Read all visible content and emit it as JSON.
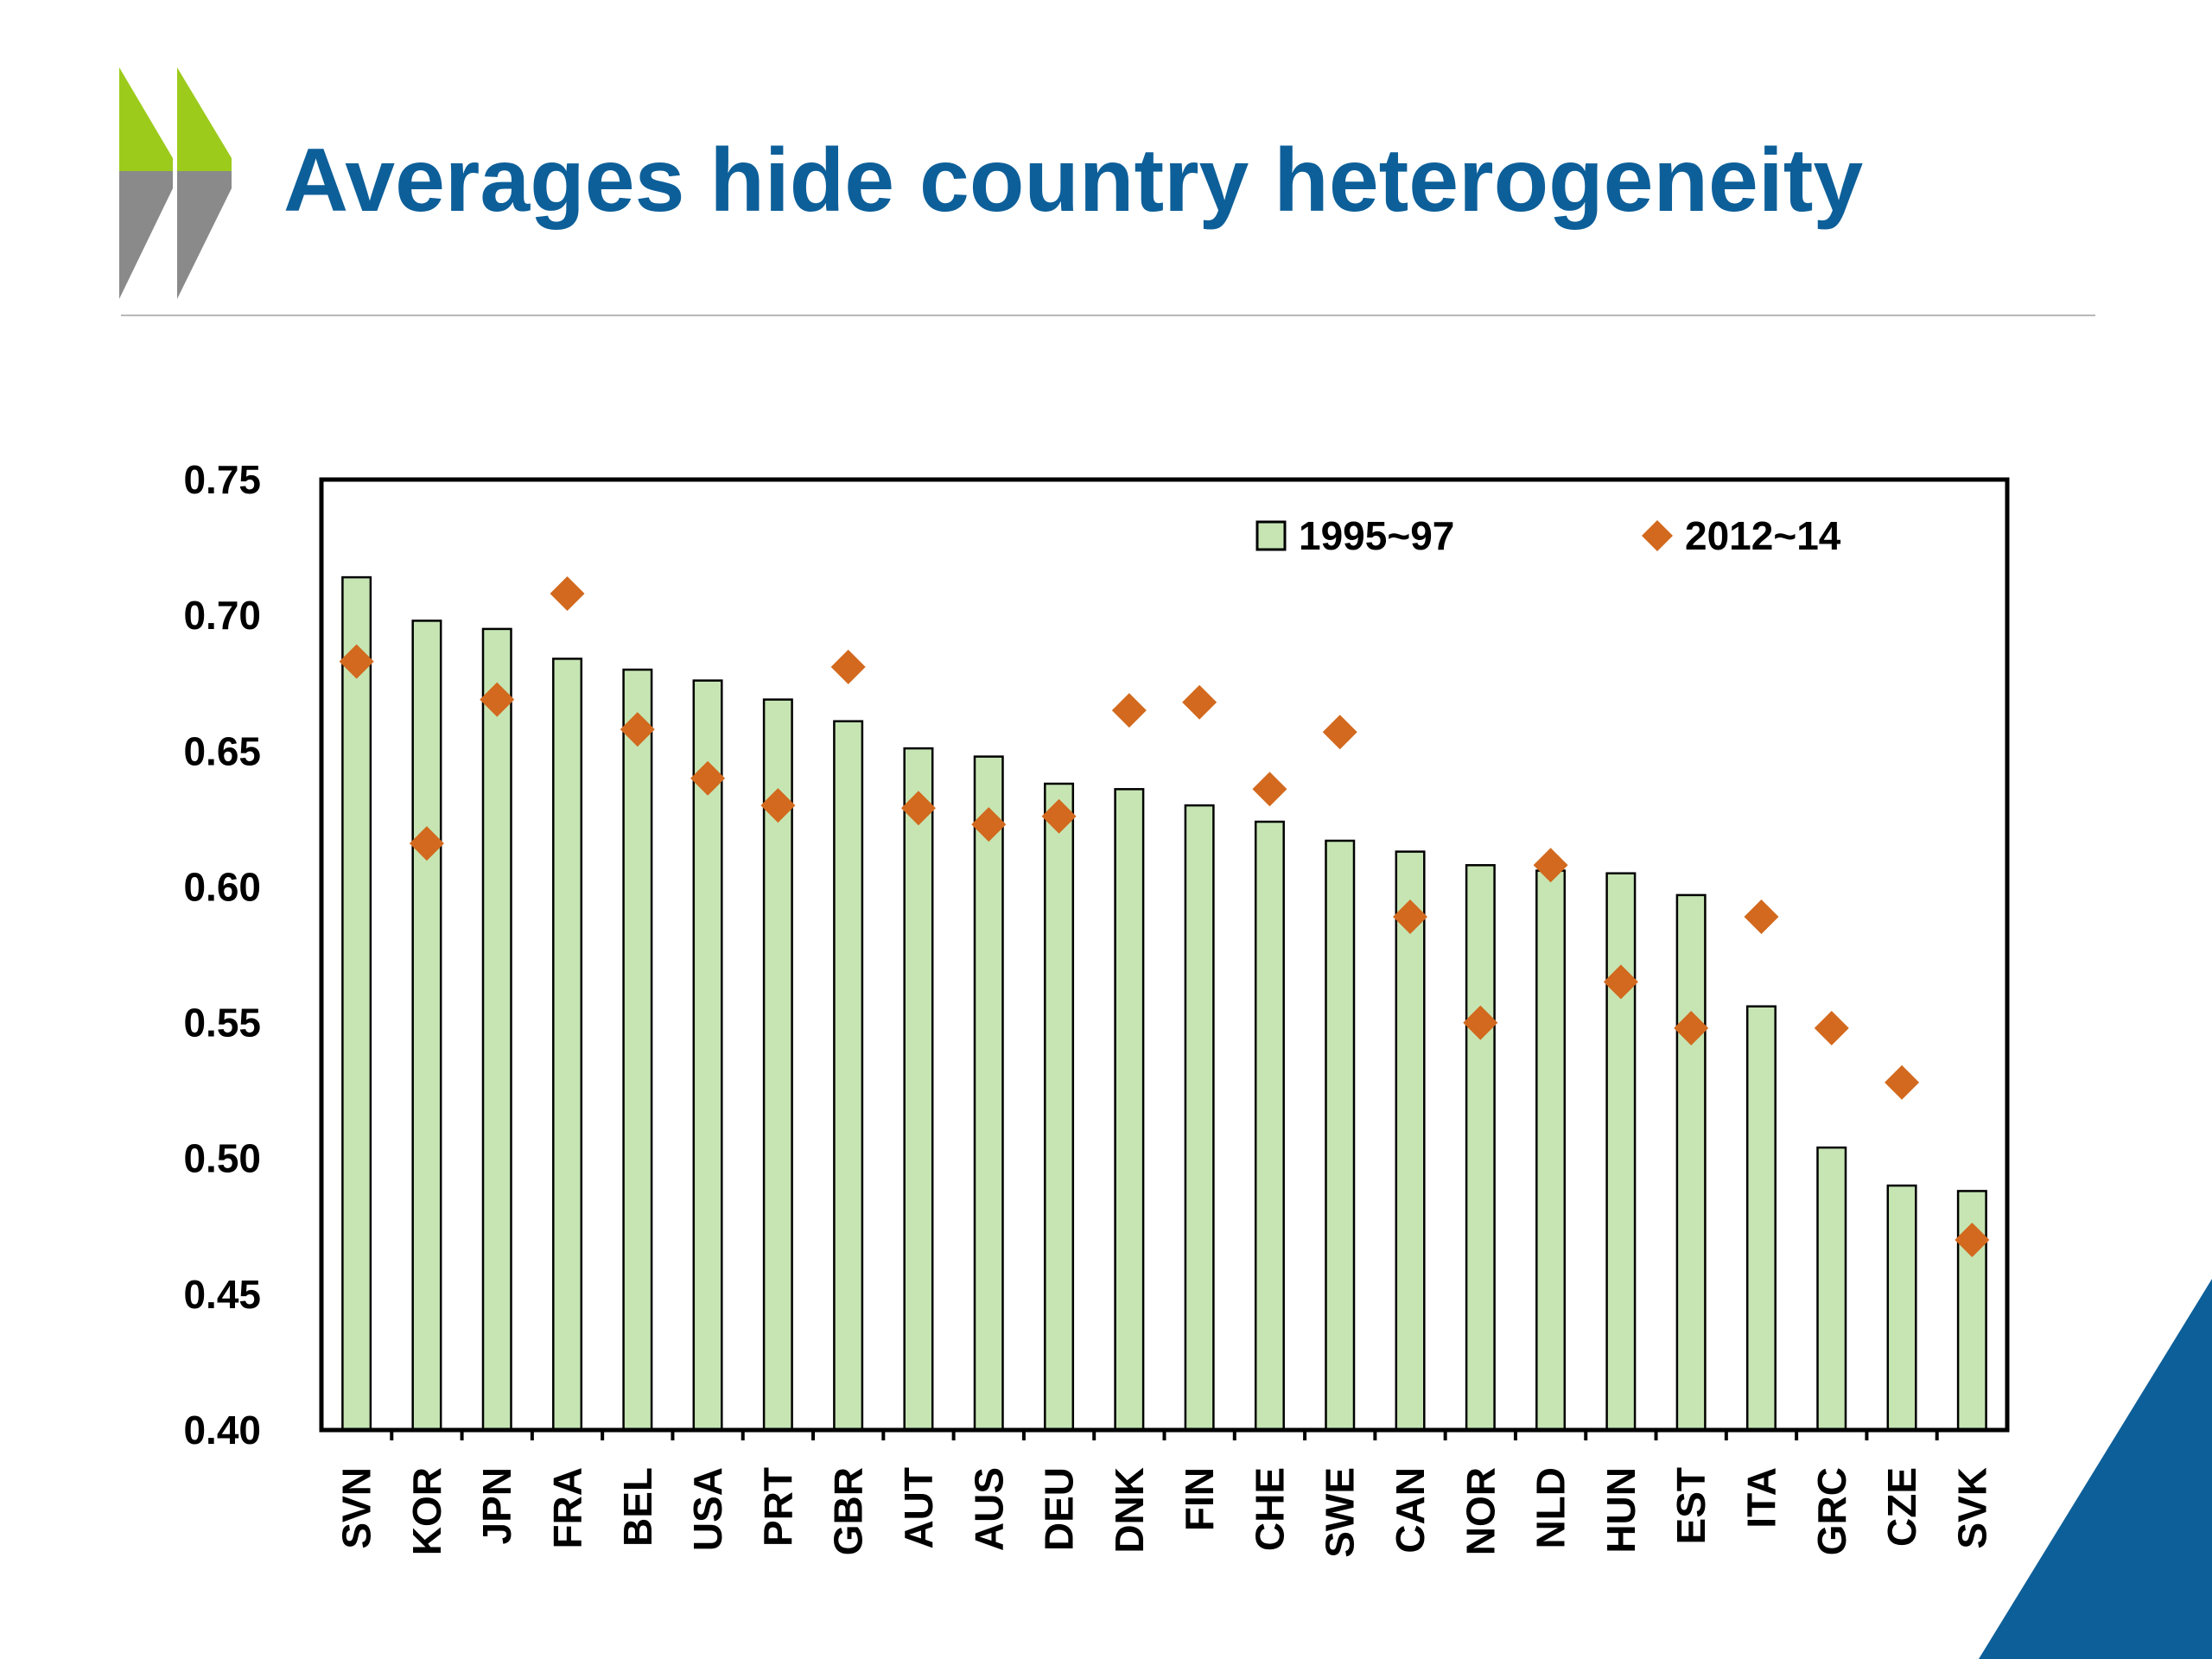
{
  "slide": {
    "title": "Averages hide country heterogeneity"
  },
  "chart_data": {
    "type": "bar",
    "categories": [
      "SVN",
      "KOR",
      "JPN",
      "FRA",
      "BEL",
      "USA",
      "PRT",
      "GBR",
      "AUT",
      "AUS",
      "DEU",
      "DNK",
      "FIN",
      "CHE",
      "SWE",
      "CAN",
      "NOR",
      "NLD",
      "HUN",
      "EST",
      "ITA",
      "GRC",
      "CZE",
      "SVK"
    ],
    "series": [
      {
        "name": "1995~97",
        "kind": "bar",
        "color": "#c6e5b3",
        "values": [
          0.714,
          0.698,
          0.695,
          0.684,
          0.68,
          0.676,
          0.669,
          0.661,
          0.651,
          0.648,
          0.638,
          0.636,
          0.63,
          0.624,
          0.617,
          0.613,
          0.608,
          0.606,
          0.605,
          0.597,
          0.556,
          0.504,
          0.49,
          0.488
        ]
      },
      {
        "name": "2012~14",
        "kind": "marker",
        "color": "#d2691e",
        "values": [
          0.683,
          0.616,
          0.669,
          0.708,
          0.658,
          0.64,
          0.63,
          0.681,
          0.629,
          0.623,
          0.626,
          0.665,
          0.668,
          0.636,
          0.657,
          0.589,
          0.55,
          0.608,
          0.565,
          0.548,
          0.589,
          0.548,
          0.528,
          0.47
        ]
      }
    ],
    "yticks": [
      "0.40",
      "0.45",
      "0.50",
      "0.55",
      "0.60",
      "0.65",
      "0.70",
      "0.75"
    ],
    "ylim": [
      0.4,
      0.75
    ],
    "title": "",
    "xlabel": "",
    "ylabel": "",
    "legend_position": "top-right",
    "grid": false
  }
}
